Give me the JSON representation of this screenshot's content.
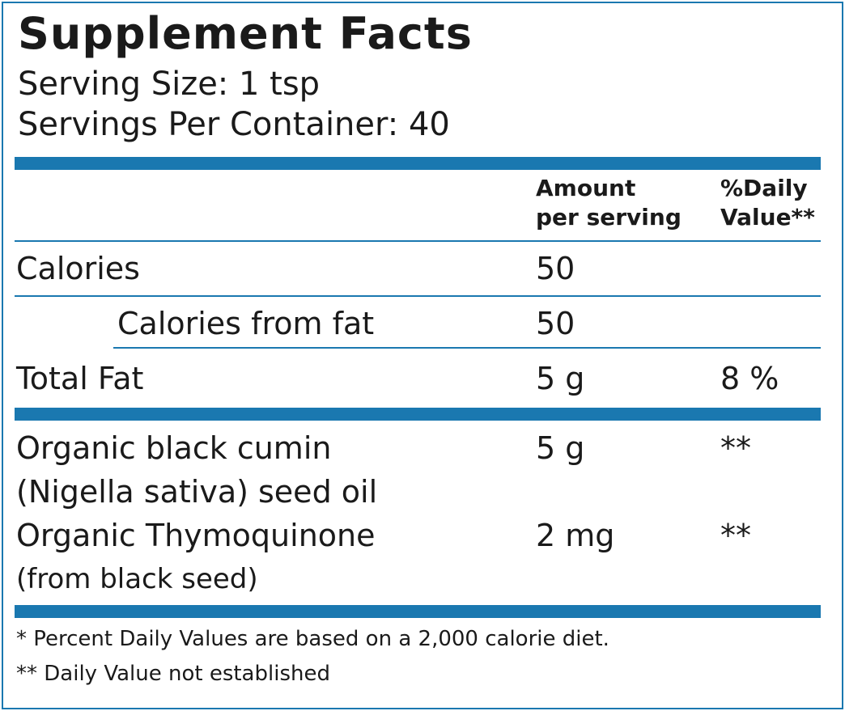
{
  "title": "Supplement Facts",
  "serving_size": "Serving Size: 1 tsp",
  "servings_per_container": "Servings Per Container: 40",
  "columns": {
    "amount_line1": "Amount",
    "amount_line2": "per serving",
    "dv_line1": "%Daily",
    "dv_line2": "Value**"
  },
  "rows": {
    "calories": {
      "label": "Calories",
      "amount": "50"
    },
    "calories_fat": {
      "label": "Calories from fat",
      "amount": "50"
    },
    "total_fat": {
      "label": "Total Fat",
      "amount": "5 g",
      "dv": "8 %"
    },
    "cumin": {
      "label_line1": "Organic black cumin",
      "label_line2": "(Nigella sativa) seed oil",
      "amount": "5 g",
      "dv": "**"
    },
    "thymo": {
      "label_line1": "Organic Thymoquinone",
      "label_line2": "(from black seed)",
      "amount": "2 mg",
      "dv": "**"
    }
  },
  "footnotes": {
    "note1": "* Percent Daily Values are based on a 2,000 calorie diet.",
    "note2": "** Daily Value not established"
  },
  "colors": {
    "accent": "#1a78b0",
    "text": "#1a1a1a"
  }
}
